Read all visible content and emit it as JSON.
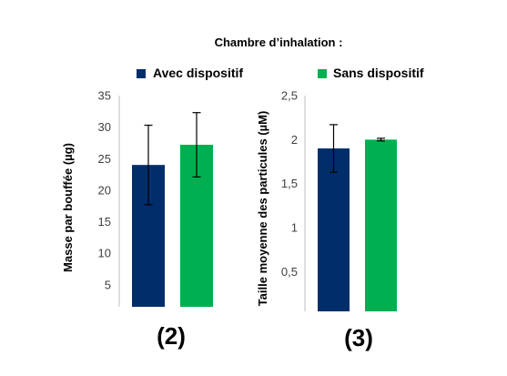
{
  "figure": {
    "title": "Chambre d’inhalation :",
    "legend": [
      {
        "label": "Avec dispositif",
        "color": "#002E6B"
      },
      {
        "label": "Sans dispositif",
        "color": "#00B050"
      }
    ]
  },
  "chart_data": [
    {
      "type": "bar",
      "panel_label": "(2)",
      "categories": [
        "Avec dispositif",
        "Sans dispositif"
      ],
      "series": [
        {
          "values": [
            24.0,
            27.2
          ],
          "error": [
            6.3,
            5.1
          ]
        }
      ],
      "colors": [
        "#002E6B",
        "#00B050"
      ],
      "ylabel": "Masse par bouffée (µg)",
      "ylim": [
        1.5,
        35
      ],
      "yticks": [
        5,
        10,
        15,
        20,
        25,
        30,
        35
      ],
      "ytick_labels": [
        "5",
        "10",
        "15",
        "20",
        "25",
        "30",
        "35"
      ],
      "grid": false
    },
    {
      "type": "bar",
      "panel_label": "(3)",
      "categories": [
        "Avec dispositif",
        "Sans dispositif"
      ],
      "series": [
        {
          "values": [
            1.9,
            2.0
          ],
          "error": [
            0.27,
            0.015
          ]
        }
      ],
      "colors": [
        "#002E6B",
        "#00B050"
      ],
      "ylabel": "Taille moyenne des particules (µM)",
      "ylim": [
        0.05,
        2.5
      ],
      "yticks": [
        0.5,
        1,
        1.5,
        2,
        2.5
      ],
      "ytick_labels": [
        "0,5",
        "1",
        "1,5",
        "2",
        "2,5"
      ],
      "grid": false
    }
  ]
}
